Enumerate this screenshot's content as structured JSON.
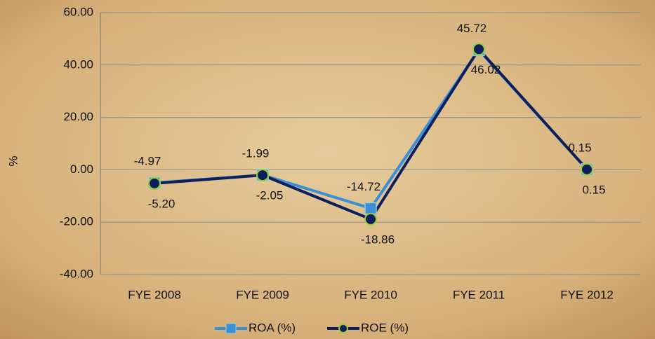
{
  "chart_data": {
    "type": "line",
    "y_label": "%",
    "categories": [
      "FYE 2008",
      "FYE 2009",
      "FYE 2010",
      "FYE 2011",
      "FYE 2012"
    ],
    "series": [
      {
        "name": "ROA (%)",
        "color": "#3b8fd6",
        "marker": "square",
        "values": [
          -4.97,
          -1.99,
          -14.72,
          45.72,
          0.15
        ],
        "value_labels": [
          "-4.97",
          "-1.99",
          "-14.72",
          "45.72",
          "0.15"
        ]
      },
      {
        "name": "ROE (%)",
        "color": "#0c1e5c",
        "marker": "circle",
        "values": [
          -5.2,
          -2.05,
          -18.86,
          46.02,
          0.15
        ],
        "value_labels": [
          "-5.20",
          "-2.05",
          "-18.86",
          "46.02",
          "0.15"
        ]
      }
    ],
    "ylim": [
      -40,
      60
    ],
    "yticks": [
      {
        "value": -40,
        "label": "-40.00"
      },
      {
        "value": -20,
        "label": "-20.00"
      },
      {
        "value": 0,
        "label": "0.00"
      },
      {
        "value": 20,
        "label": "20.00"
      },
      {
        "value": 40,
        "label": "40.00"
      },
      {
        "value": 60,
        "label": "60.00"
      }
    ],
    "grid": true,
    "legend": "bottom"
  }
}
